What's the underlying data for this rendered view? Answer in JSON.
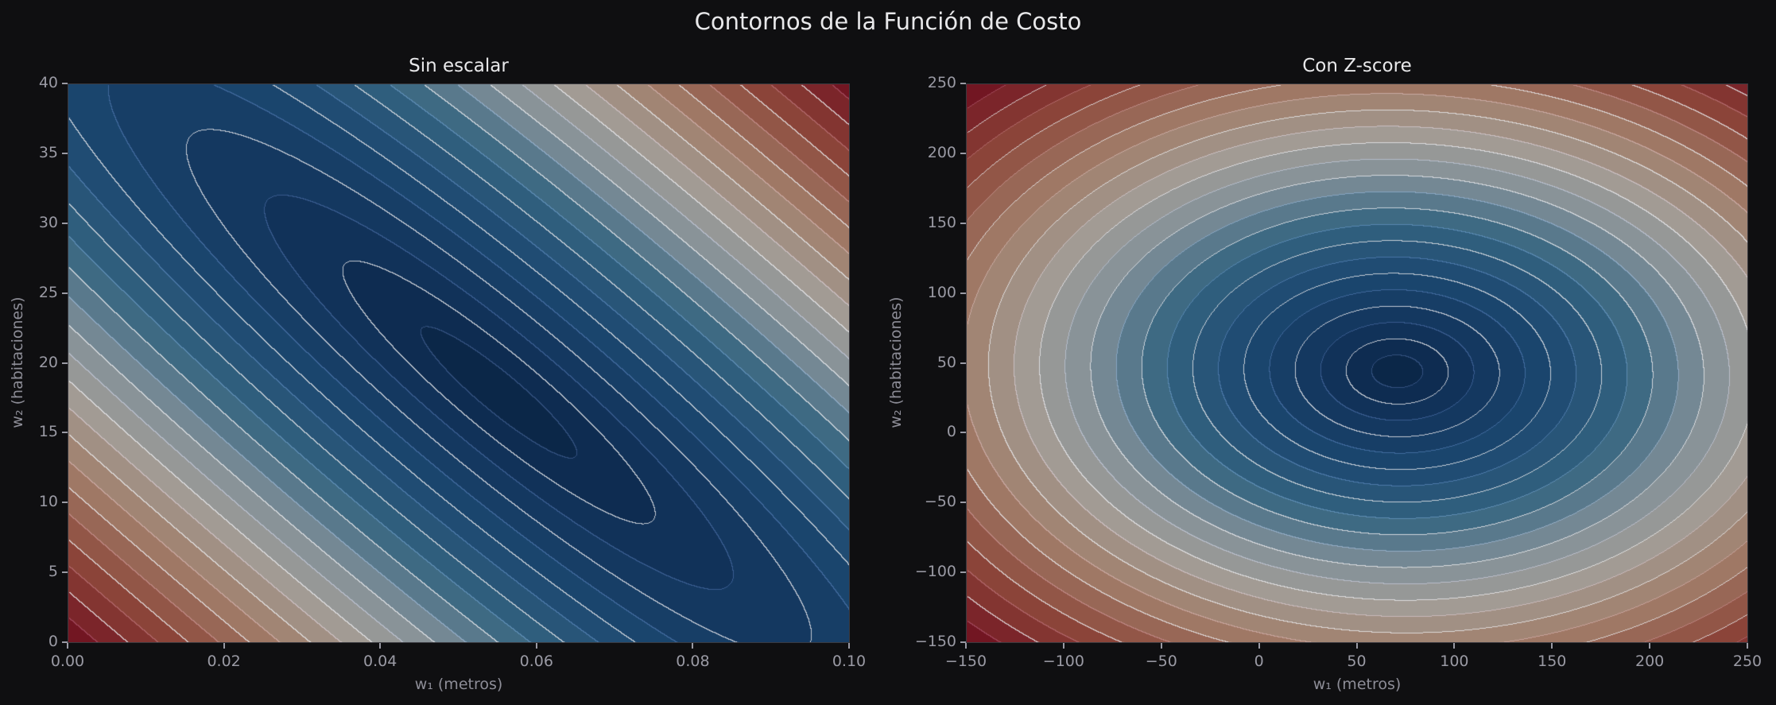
{
  "figure": {
    "title": "Contornos de la Función de Costo",
    "background": "#0f0f11"
  },
  "panels": [
    {
      "title": "Sin escalar",
      "xlabel": "w₁ (metros)",
      "ylabel": "w₂ (habitaciones)",
      "xticks": [
        "0.00",
        "0.02",
        "0.04",
        "0.06",
        "0.08",
        "0.10"
      ],
      "yticks": [
        "0",
        "5",
        "10",
        "15",
        "20",
        "25",
        "30",
        "35",
        "40"
      ]
    },
    {
      "title": "Con Z-score",
      "xlabel": "w₁ (metros)",
      "ylabel": "w₂ (habitaciones)",
      "xticks": [
        "−150",
        "−100",
        "−50",
        "0",
        "50",
        "100",
        "150",
        "200",
        "250"
      ],
      "yticks": [
        "−150",
        "−100",
        "−50",
        "0",
        "50",
        "100",
        "150",
        "200",
        "250"
      ]
    }
  ],
  "chart_data": [
    {
      "type": "contour",
      "title": "Sin escalar",
      "xlabel": "w₁ (metros)",
      "ylabel": "w₂ (habitaciones)",
      "xlim": [
        0.0,
        0.1
      ],
      "ylim": [
        0,
        40
      ],
      "xticks": [
        0.0,
        0.02,
        0.04,
        0.06,
        0.08,
        0.1
      ],
      "yticks": [
        0,
        5,
        10,
        15,
        20,
        25,
        30,
        35,
        40
      ],
      "minimum_approx": {
        "w1": 0.055,
        "w2": 18
      },
      "shape": "elongated diagonal ellipses (ill-conditioned, strongly correlated)",
      "colormap": "RdBu_r (dark blue low cost → gray → dark red high cost)",
      "grid": false,
      "num_levels_approx": 50
    },
    {
      "type": "contour",
      "title": "Con Z-score",
      "xlabel": "w₁ (metros)",
      "ylabel": "w₂ (habitaciones)",
      "xlim": [
        -150,
        250
      ],
      "ylim": [
        -150,
        250
      ],
      "xticks": [
        -150,
        -100,
        -50,
        0,
        50,
        100,
        150,
        200,
        250
      ],
      "yticks": [
        -150,
        -100,
        -50,
        0,
        50,
        100,
        150,
        200,
        250
      ],
      "minimum_approx": {
        "w1": 70,
        "w2": 45
      },
      "shape": "near-circular ellipses (well-conditioned)",
      "colormap": "RdBu_r (dark blue low cost → gray → dark red high cost)",
      "grid": false,
      "num_levels_approx": 50
    }
  ]
}
